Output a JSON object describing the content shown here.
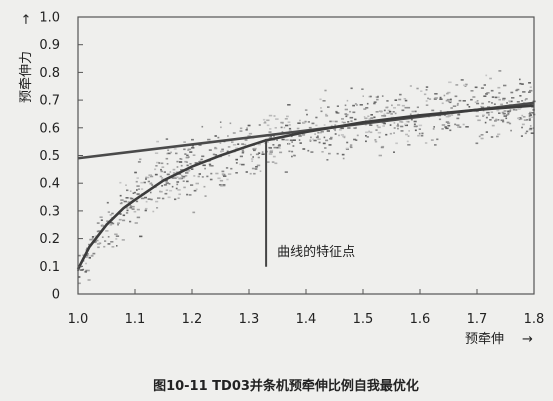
{
  "chart_data": {
    "type": "scatter",
    "xlabel": "预牵伸",
    "ylabel": "预牵伸力",
    "x_arrow": "→",
    "y_arrow": "→",
    "xlim": [
      1.0,
      1.8
    ],
    "ylim": [
      0,
      1.0
    ],
    "x_ticks": [
      "1.0",
      "1.1",
      "1.2",
      "1.3",
      "1.4",
      "1.5",
      "1.6",
      "1.7",
      "1.8"
    ],
    "y_ticks": [
      "0",
      "0.1",
      "0.2",
      "0.3",
      "0.4",
      "0.5",
      "0.6",
      "0.7",
      "0.8",
      "0.9",
      "1.0"
    ],
    "grid": false,
    "caption": "图10-11  TD03并条机预牵伸比例自我最优化",
    "annotation": {
      "text": "曲线的特征点",
      "x": 1.33,
      "y": 0.56,
      "label_y": 0.12
    },
    "straight_line": {
      "x": [
        1.0,
        1.8
      ],
      "y": [
        0.49,
        0.69
      ]
    },
    "curve": {
      "x": [
        1.0,
        1.02,
        1.05,
        1.08,
        1.1,
        1.15,
        1.2,
        1.25,
        1.3,
        1.33,
        1.4,
        1.5,
        1.6,
        1.7,
        1.8
      ],
      "y": [
        0.09,
        0.17,
        0.25,
        0.31,
        0.34,
        0.41,
        0.46,
        0.5,
        0.535,
        0.555,
        0.585,
        0.62,
        0.645,
        0.665,
        0.68
      ]
    },
    "scatter_cloud": {
      "x": [
        1.0,
        1.05,
        1.1,
        1.15,
        1.2,
        1.25,
        1.3,
        1.35,
        1.4,
        1.5,
        1.6,
        1.7,
        1.8
      ],
      "center": [
        0.09,
        0.25,
        0.34,
        0.41,
        0.46,
        0.5,
        0.535,
        0.56,
        0.585,
        0.62,
        0.645,
        0.665,
        0.68
      ],
      "spread": [
        0.06,
        0.1,
        0.12,
        0.13,
        0.13,
        0.13,
        0.13,
        0.12,
        0.12,
        0.12,
        0.12,
        0.12,
        0.13
      ]
    }
  }
}
